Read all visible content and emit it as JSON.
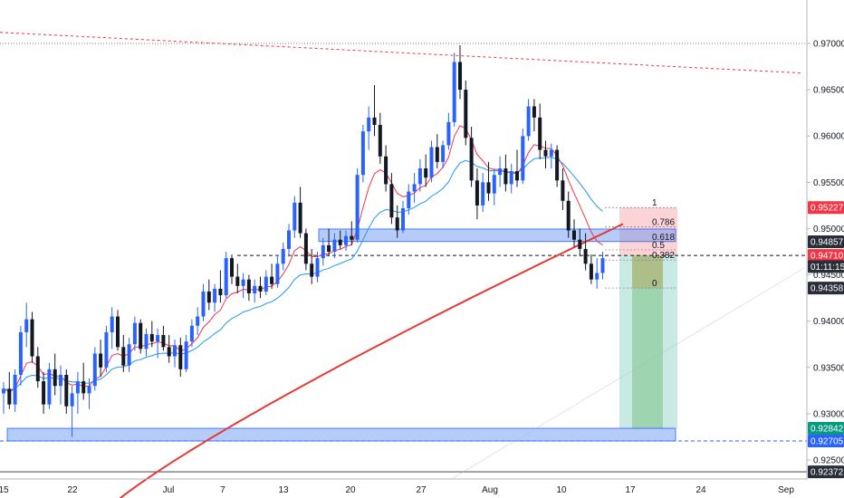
{
  "chart_data": {
    "type": "candlestick",
    "title": "",
    "ylim": [
      0.9225,
      0.9725
    ],
    "x_tick_labels": [
      "15",
      "22",
      "Jul",
      "7",
      "13",
      "20",
      "27",
      "Aug",
      "10",
      "17",
      "24",
      "Sep"
    ],
    "y_tick_labels": [
      "0.97000",
      "0.96500",
      "0.96000",
      "0.95500",
      "0.95000",
      "0.94500",
      "0.94000",
      "0.93500",
      "0.93000",
      "0.92500"
    ],
    "y_ticks": [
      0.97,
      0.965,
      0.96,
      0.955,
      0.95,
      0.945,
      0.94,
      0.935,
      0.93,
      0.925
    ],
    "price_badges": [
      {
        "label": "0.95227",
        "value": 0.95227,
        "color": "#f23645"
      },
      {
        "label": "0.94857",
        "value": 0.94857,
        "color": "#2a2e39"
      },
      {
        "label": "0.94710",
        "value": 0.9471,
        "color": "#f23645"
      },
      {
        "label": "01:11:15",
        "value": 0.9459,
        "color": "#2a2e39"
      },
      {
        "label": "0.94358",
        "value": 0.94358,
        "color": "#2a2e39"
      },
      {
        "label": "0.92842",
        "value": 0.92842,
        "color": "#089981"
      },
      {
        "label": "0.92705",
        "value": 0.92705,
        "color": "#2962ff"
      },
      {
        "label": "0.92372",
        "value": 0.92372,
        "color": "#2a2e39"
      }
    ],
    "fib_levels": [
      {
        "label": "1",
        "value": 0.95227
      },
      {
        "label": "0.786",
        "value": 0.9502
      },
      {
        "label": "0.618",
        "value": 0.9486
      },
      {
        "label": "0.5",
        "value": 0.9477
      },
      {
        "label": "0.382",
        "value": 0.9466
      },
      {
        "label": "0",
        "value": 0.94358
      }
    ],
    "support_zones": [
      {
        "from": 0.9486,
        "to": 0.94995
      },
      {
        "from": 0.92705,
        "to": 0.92842
      }
    ],
    "horizontal_lines": [
      {
        "value": 0.97,
        "style": "dotted",
        "color": "#787b86"
      },
      {
        "value": 0.9471,
        "style": "dashed",
        "color": "#131722"
      },
      {
        "value": 0.92705,
        "style": "dashed",
        "color": "#2962ff"
      }
    ],
    "trendline": {
      "from": 0.9712,
      "to": 0.9668,
      "color": "#f23645"
    },
    "position": {
      "entry": 0.9471,
      "stop": 0.95227,
      "target": 0.92842
    },
    "candles": [
      [
        0.9322,
        0.9334,
        0.93,
        0.9327
      ],
      [
        0.9327,
        0.9345,
        0.9305,
        0.931
      ],
      [
        0.931,
        0.9348,
        0.9302,
        0.9342
      ],
      [
        0.9342,
        0.9395,
        0.933,
        0.9388
      ],
      [
        0.9388,
        0.942,
        0.9372,
        0.9402
      ],
      [
        0.9402,
        0.941,
        0.9355,
        0.9362
      ],
      [
        0.9362,
        0.9372,
        0.9328,
        0.9335
      ],
      [
        0.9335,
        0.9345,
        0.93,
        0.931
      ],
      [
        0.931,
        0.9355,
        0.9305,
        0.9348
      ],
      [
        0.9348,
        0.9365,
        0.932,
        0.933
      ],
      [
        0.933,
        0.9352,
        0.931,
        0.9342
      ],
      [
        0.9342,
        0.9348,
        0.93,
        0.9308
      ],
      [
        0.9308,
        0.933,
        0.9275,
        0.9322
      ],
      [
        0.9322,
        0.9345,
        0.93,
        0.9335
      ],
      [
        0.9335,
        0.9355,
        0.9315,
        0.9322
      ],
      [
        0.9322,
        0.9338,
        0.9305,
        0.933
      ],
      [
        0.933,
        0.9372,
        0.9325,
        0.9365
      ],
      [
        0.9365,
        0.938,
        0.934,
        0.935
      ],
      [
        0.935,
        0.9395,
        0.9345,
        0.9388
      ],
      [
        0.9388,
        0.9415,
        0.937,
        0.9405
      ],
      [
        0.9405,
        0.9412,
        0.9368,
        0.9372
      ],
      [
        0.9372,
        0.9385,
        0.9345,
        0.9352
      ],
      [
        0.9352,
        0.9382,
        0.9345,
        0.9375
      ],
      [
        0.9375,
        0.9405,
        0.9368,
        0.9398
      ],
      [
        0.9398,
        0.9402,
        0.9365,
        0.937
      ],
      [
        0.937,
        0.9392,
        0.9362,
        0.9386
      ],
      [
        0.9386,
        0.94,
        0.9372,
        0.9378
      ],
      [
        0.9378,
        0.9392,
        0.936,
        0.9385
      ],
      [
        0.9385,
        0.9395,
        0.9368,
        0.9372
      ],
      [
        0.9372,
        0.9385,
        0.9355,
        0.9362
      ],
      [
        0.9362,
        0.938,
        0.935,
        0.9374
      ],
      [
        0.9374,
        0.9382,
        0.934,
        0.9348
      ],
      [
        0.9348,
        0.9385,
        0.9345,
        0.9378
      ],
      [
        0.9378,
        0.9402,
        0.9372,
        0.9395
      ],
      [
        0.9395,
        0.9415,
        0.9385,
        0.9405
      ],
      [
        0.9405,
        0.944,
        0.94,
        0.9432
      ],
      [
        0.9432,
        0.9445,
        0.9412,
        0.942
      ],
      [
        0.942,
        0.944,
        0.941,
        0.9435
      ],
      [
        0.9435,
        0.9455,
        0.942,
        0.9428
      ],
      [
        0.9428,
        0.9475,
        0.9425,
        0.9468
      ],
      [
        0.9468,
        0.9472,
        0.944,
        0.9448
      ],
      [
        0.9448,
        0.9462,
        0.943,
        0.9438
      ],
      [
        0.9438,
        0.9452,
        0.9425,
        0.9445
      ],
      [
        0.9445,
        0.945,
        0.9422,
        0.943
      ],
      [
        0.943,
        0.9445,
        0.942,
        0.9438
      ],
      [
        0.9438,
        0.9448,
        0.9425,
        0.9432
      ],
      [
        0.9432,
        0.9455,
        0.9428,
        0.9448
      ],
      [
        0.9448,
        0.9462,
        0.9435,
        0.944
      ],
      [
        0.944,
        0.947,
        0.9436,
        0.9462
      ],
      [
        0.9462,
        0.9485,
        0.9455,
        0.9478
      ],
      [
        0.9478,
        0.9505,
        0.947,
        0.9498
      ],
      [
        0.9498,
        0.9535,
        0.949,
        0.9528
      ],
      [
        0.9528,
        0.9545,
        0.949,
        0.9495
      ],
      [
        0.9495,
        0.95,
        0.9455,
        0.9462
      ],
      [
        0.9462,
        0.9478,
        0.944,
        0.9448
      ],
      [
        0.9448,
        0.9475,
        0.9442,
        0.9468
      ],
      [
        0.9468,
        0.949,
        0.946,
        0.9482
      ],
      [
        0.9482,
        0.95,
        0.947,
        0.9475
      ],
      [
        0.9475,
        0.9495,
        0.9468,
        0.9488
      ],
      [
        0.9488,
        0.9498,
        0.9478,
        0.9482
      ],
      [
        0.9482,
        0.9498,
        0.9476,
        0.9492
      ],
      [
        0.9492,
        0.9508,
        0.9482,
        0.9488
      ],
      [
        0.9488,
        0.9565,
        0.9485,
        0.9558
      ],
      [
        0.9558,
        0.9612,
        0.955,
        0.9605
      ],
      [
        0.9605,
        0.9632,
        0.9585,
        0.962
      ],
      [
        0.962,
        0.9655,
        0.96,
        0.9612
      ],
      [
        0.9612,
        0.9625,
        0.957,
        0.9578
      ],
      [
        0.9578,
        0.959,
        0.954,
        0.9548
      ],
      [
        0.9548,
        0.956,
        0.9505,
        0.9512
      ],
      [
        0.9512,
        0.9525,
        0.949,
        0.9498
      ],
      [
        0.9498,
        0.953,
        0.9495,
        0.9522
      ],
      [
        0.9522,
        0.9548,
        0.9515,
        0.954
      ],
      [
        0.954,
        0.956,
        0.9528,
        0.9548
      ],
      [
        0.9548,
        0.9575,
        0.954,
        0.9565
      ],
      [
        0.9565,
        0.958,
        0.9545,
        0.9555
      ],
      [
        0.9555,
        0.9595,
        0.955,
        0.9588
      ],
      [
        0.9588,
        0.9602,
        0.9565,
        0.9572
      ],
      [
        0.9572,
        0.9595,
        0.9565,
        0.959
      ],
      [
        0.959,
        0.9625,
        0.9585,
        0.9615
      ],
      [
        0.9615,
        0.969,
        0.961,
        0.968
      ],
      [
        0.968,
        0.9698,
        0.964,
        0.965
      ],
      [
        0.965,
        0.966,
        0.959,
        0.9598
      ],
      [
        0.9598,
        0.961,
        0.9545,
        0.9552
      ],
      [
        0.9552,
        0.9565,
        0.951,
        0.9525
      ],
      [
        0.9525,
        0.956,
        0.9518,
        0.955
      ],
      [
        0.955,
        0.9572,
        0.953,
        0.9538
      ],
      [
        0.9538,
        0.9565,
        0.9525,
        0.9558
      ],
      [
        0.9558,
        0.9578,
        0.9545,
        0.9565
      ],
      [
        0.9565,
        0.958,
        0.954,
        0.9548
      ],
      [
        0.9548,
        0.957,
        0.9538,
        0.9562
      ],
      [
        0.9562,
        0.9585,
        0.9545,
        0.9552
      ],
      [
        0.9552,
        0.9608,
        0.9548,
        0.96
      ],
      [
        0.96,
        0.964,
        0.9595,
        0.9632
      ],
      [
        0.9632,
        0.964,
        0.9605,
        0.962
      ],
      [
        0.962,
        0.9635,
        0.9575,
        0.9585
      ],
      [
        0.9585,
        0.9595,
        0.9565,
        0.9578
      ],
      [
        0.9578,
        0.9592,
        0.9565,
        0.9585
      ],
      [
        0.9585,
        0.959,
        0.9545,
        0.9552
      ],
      [
        0.9552,
        0.9565,
        0.952,
        0.953
      ],
      [
        0.953,
        0.954,
        0.949,
        0.9498
      ],
      [
        0.9498,
        0.951,
        0.948,
        0.9488
      ],
      [
        0.9488,
        0.95,
        0.947,
        0.9478
      ],
      [
        0.9478,
        0.9495,
        0.9455,
        0.9462
      ],
      [
        0.9462,
        0.9472,
        0.944,
        0.9445
      ],
      [
        0.9445,
        0.9468,
        0.9435,
        0.9452
      ],
      [
        0.9452,
        0.9475,
        0.9445,
        0.9468
      ]
    ]
  }
}
